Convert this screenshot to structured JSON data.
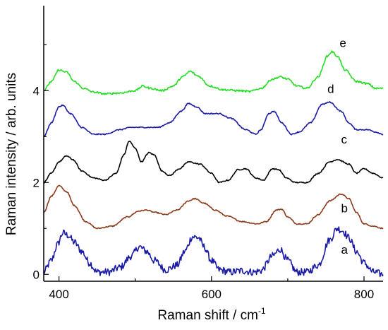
{
  "chart_data": {
    "type": "line",
    "title": "",
    "xlabel": "Raman shift / cm",
    "xlabel_superscript": "-1",
    "ylabel": "Raman intensity / arb. units",
    "xlim": [
      380,
      825
    ],
    "ylim": [
      -0.15,
      5.85
    ],
    "xticks": [
      400,
      600,
      800
    ],
    "yticks": [
      0,
      2,
      4
    ],
    "grid": false,
    "legend": "none",
    "series": [
      {
        "name": "a",
        "color": "#1a1aa6",
        "noise": 0.08,
        "label_pos": [
          770,
          0.45
        ],
        "points": [
          [
            380,
            0.05
          ],
          [
            390,
            0.3
          ],
          [
            398,
            0.65
          ],
          [
            405,
            0.9
          ],
          [
            412,
            0.85
          ],
          [
            420,
            0.7
          ],
          [
            430,
            0.5
          ],
          [
            440,
            0.25
          ],
          [
            450,
            0.05
          ],
          [
            465,
            0.05
          ],
          [
            480,
            0.15
          ],
          [
            495,
            0.4
          ],
          [
            505,
            0.6
          ],
          [
            515,
            0.5
          ],
          [
            525,
            0.3
          ],
          [
            540,
            0.1
          ],
          [
            555,
            0.2
          ],
          [
            565,
            0.5
          ],
          [
            575,
            0.82
          ],
          [
            583,
            0.8
          ],
          [
            590,
            0.6
          ],
          [
            600,
            0.3
          ],
          [
            610,
            0.1
          ],
          [
            625,
            0.05
          ],
          [
            640,
            0.08
          ],
          [
            655,
            0.05
          ],
          [
            665,
            0.08
          ],
          [
            680,
            0.4
          ],
          [
            690,
            0.55
          ],
          [
            700,
            0.3
          ],
          [
            712,
            0.05
          ],
          [
            725,
            0.05
          ],
          [
            740,
            0.2
          ],
          [
            755,
            0.75
          ],
          [
            765,
            1.0
          ],
          [
            772,
            0.95
          ],
          [
            780,
            0.8
          ],
          [
            790,
            0.5
          ],
          [
            800,
            0.25
          ],
          [
            812,
            0.05
          ],
          [
            825,
            0.0
          ]
        ]
      },
      {
        "name": "b",
        "color": "#8b3a1a",
        "noise": 0.012,
        "label_pos": [
          770,
          1.35
        ],
        "points": [
          [
            380,
            1.35
          ],
          [
            390,
            1.7
          ],
          [
            400,
            1.93
          ],
          [
            410,
            1.8
          ],
          [
            420,
            1.5
          ],
          [
            435,
            1.15
          ],
          [
            450,
            1.0
          ],
          [
            470,
            1.05
          ],
          [
            490,
            1.25
          ],
          [
            505,
            1.38
          ],
          [
            515,
            1.4
          ],
          [
            525,
            1.35
          ],
          [
            540,
            1.3
          ],
          [
            555,
            1.4
          ],
          [
            570,
            1.6
          ],
          [
            578,
            1.65
          ],
          [
            590,
            1.55
          ],
          [
            605,
            1.4
          ],
          [
            620,
            1.27
          ],
          [
            640,
            1.15
          ],
          [
            660,
            1.1
          ],
          [
            672,
            1.15
          ],
          [
            685,
            1.4
          ],
          [
            692,
            1.42
          ],
          [
            700,
            1.25
          ],
          [
            712,
            1.1
          ],
          [
            725,
            1.1
          ],
          [
            740,
            1.3
          ],
          [
            755,
            1.6
          ],
          [
            770,
            1.75
          ],
          [
            780,
            1.65
          ],
          [
            790,
            1.35
          ],
          [
            800,
            1.1
          ],
          [
            812,
            1.05
          ],
          [
            825,
            1.0
          ]
        ]
      },
      {
        "name": "c",
        "color": "#000000",
        "noise": 0.012,
        "label_pos": [
          770,
          2.85
        ],
        "points": [
          [
            380,
            2.0
          ],
          [
            390,
            2.2
          ],
          [
            400,
            2.45
          ],
          [
            410,
            2.58
          ],
          [
            418,
            2.5
          ],
          [
            430,
            2.25
          ],
          [
            445,
            2.1
          ],
          [
            460,
            2.05
          ],
          [
            475,
            2.2
          ],
          [
            485,
            2.6
          ],
          [
            492,
            2.9
          ],
          [
            500,
            2.75
          ],
          [
            508,
            2.45
          ],
          [
            518,
            2.65
          ],
          [
            525,
            2.6
          ],
          [
            535,
            2.25
          ],
          [
            545,
            2.15
          ],
          [
            558,
            2.3
          ],
          [
            570,
            2.45
          ],
          [
            585,
            2.4
          ],
          [
            600,
            2.2
          ],
          [
            610,
            2.0
          ],
          [
            622,
            2.05
          ],
          [
            635,
            2.28
          ],
          [
            645,
            2.3
          ],
          [
            658,
            2.1
          ],
          [
            668,
            2.05
          ],
          [
            680,
            2.3
          ],
          [
            688,
            2.28
          ],
          [
            698,
            2.1
          ],
          [
            710,
            2.0
          ],
          [
            725,
            2.0
          ],
          [
            740,
            2.2
          ],
          [
            755,
            2.45
          ],
          [
            765,
            2.5
          ],
          [
            780,
            2.4
          ],
          [
            790,
            2.2
          ],
          [
            800,
            2.3
          ],
          [
            812,
            2.2
          ],
          [
            825,
            2.1
          ]
        ]
      },
      {
        "name": "d",
        "color": "#1a1aa6",
        "noise": 0.012,
        "label_pos": [
          752,
          3.95
        ],
        "points": [
          [
            380,
            3.0
          ],
          [
            390,
            3.3
          ],
          [
            400,
            3.65
          ],
          [
            405,
            3.68
          ],
          [
            415,
            3.5
          ],
          [
            430,
            3.2
          ],
          [
            445,
            3.05
          ],
          [
            460,
            3.05
          ],
          [
            480,
            3.15
          ],
          [
            495,
            3.2
          ],
          [
            510,
            3.2
          ],
          [
            530,
            3.2
          ],
          [
            545,
            3.3
          ],
          [
            560,
            3.55
          ],
          [
            570,
            3.72
          ],
          [
            580,
            3.65
          ],
          [
            592,
            3.5
          ],
          [
            610,
            3.5
          ],
          [
            625,
            3.4
          ],
          [
            645,
            3.15
          ],
          [
            658,
            3.05
          ],
          [
            665,
            3.15
          ],
          [
            675,
            3.5
          ],
          [
            682,
            3.55
          ],
          [
            692,
            3.3
          ],
          [
            705,
            3.05
          ],
          [
            715,
            3.1
          ],
          [
            730,
            3.3
          ],
          [
            745,
            3.7
          ],
          [
            755,
            3.75
          ],
          [
            770,
            3.55
          ],
          [
            780,
            3.3
          ],
          [
            790,
            3.15
          ],
          [
            805,
            3.15
          ],
          [
            815,
            3.1
          ],
          [
            825,
            3.05
          ]
        ]
      },
      {
        "name": "e",
        "color": "#22dd22",
        "noise": 0.02,
        "label_pos": [
          768,
          4.95
        ],
        "points": [
          [
            380,
            4.0
          ],
          [
            390,
            4.2
          ],
          [
            400,
            4.45
          ],
          [
            410,
            4.4
          ],
          [
            420,
            4.2
          ],
          [
            432,
            4.05
          ],
          [
            445,
            3.97
          ],
          [
            460,
            3.93
          ],
          [
            480,
            3.95
          ],
          [
            500,
            4.0
          ],
          [
            510,
            4.1
          ],
          [
            520,
            4.05
          ],
          [
            535,
            4.0
          ],
          [
            550,
            4.1
          ],
          [
            562,
            4.3
          ],
          [
            572,
            4.42
          ],
          [
            582,
            4.32
          ],
          [
            598,
            4.1
          ],
          [
            615,
            4.02
          ],
          [
            635,
            4.0
          ],
          [
            650,
            3.98
          ],
          [
            665,
            4.05
          ],
          [
            680,
            4.25
          ],
          [
            690,
            4.3
          ],
          [
            700,
            4.25
          ],
          [
            712,
            4.1
          ],
          [
            725,
            4.05
          ],
          [
            740,
            4.3
          ],
          [
            752,
            4.75
          ],
          [
            758,
            4.85
          ],
          [
            765,
            4.75
          ],
          [
            775,
            4.45
          ],
          [
            790,
            4.2
          ],
          [
            805,
            4.15
          ],
          [
            815,
            4.05
          ],
          [
            825,
            4.05
          ]
        ]
      }
    ]
  }
}
